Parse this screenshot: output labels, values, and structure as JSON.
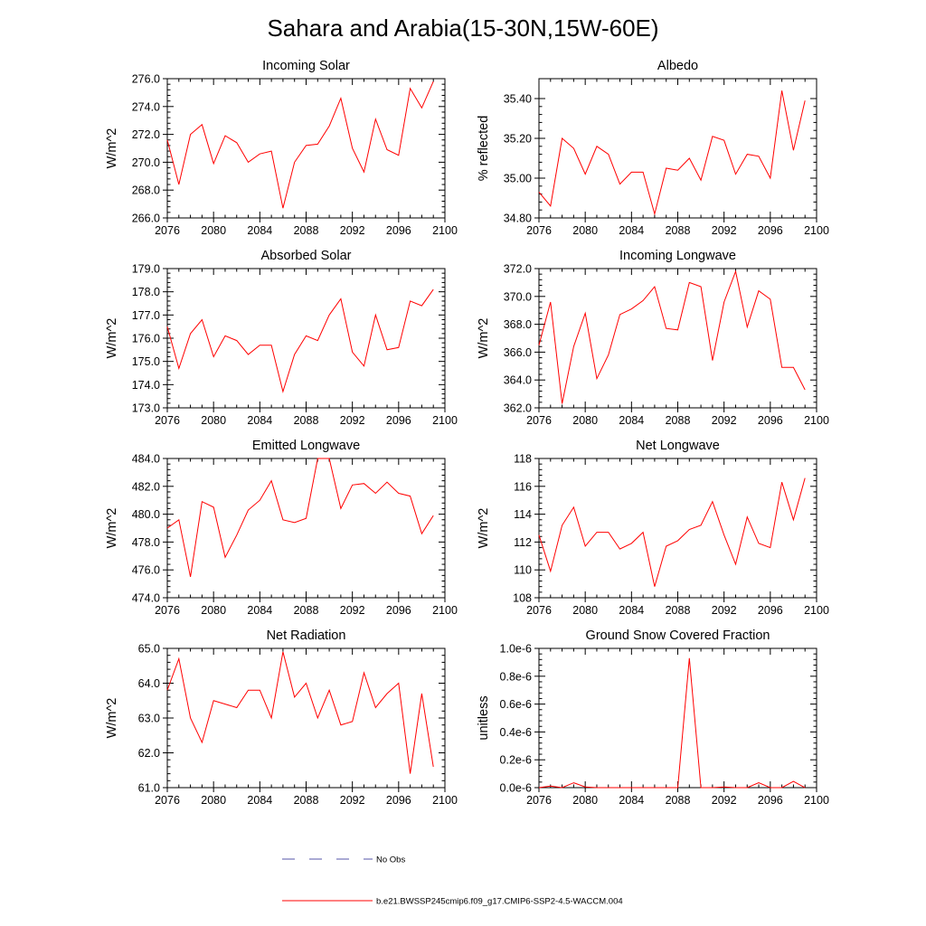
{
  "figure": {
    "title": "Sahara and Arabia(15-30N,15W-60E)",
    "legend": {
      "position": "bottom-center",
      "entries": [
        {
          "label": "No Obs",
          "style": "dashed",
          "color": "#5555aa"
        },
        {
          "label": "b.e21.BWSSP245cmip6.f09_g17.CMIP6-SSP2-4.5-WACCM.004",
          "style": "solid",
          "color": "#ff0000"
        }
      ]
    }
  },
  "chart_data": [
    {
      "type": "line",
      "title": "Incoming Solar",
      "ylabel": "W/m^2",
      "xlim": [
        2076,
        2100
      ],
      "ylim": [
        266,
        276
      ],
      "xticks": [
        2076,
        2080,
        2084,
        2088,
        2092,
        2096,
        2100
      ],
      "yticks": [
        266,
        268,
        270,
        272,
        274,
        276
      ],
      "ytick_labels": [
        "266.0",
        "268.0",
        "270.0",
        "272.0",
        "274.0",
        "276.0"
      ],
      "series": [
        {
          "color": "#ff0000",
          "x": [
            2076,
            2077,
            2078,
            2079,
            2080,
            2081,
            2082,
            2083,
            2084,
            2085,
            2086,
            2087,
            2088,
            2089,
            2090,
            2091,
            2092,
            2093,
            2094,
            2095,
            2096,
            2097,
            2098,
            2099
          ],
          "values": [
            271.6,
            268.4,
            272.0,
            272.7,
            269.9,
            271.9,
            271.4,
            270.0,
            270.6,
            270.8,
            266.7,
            270.0,
            271.2,
            271.3,
            272.6,
            274.6,
            271.0,
            269.3,
            273.1,
            270.9,
            270.5,
            275.3,
            273.9,
            275.8
          ]
        }
      ]
    },
    {
      "type": "line",
      "title": "Albedo",
      "ylabel": "% reflected",
      "xlim": [
        2076,
        2100
      ],
      "ylim": [
        34.8,
        35.5
      ],
      "xticks": [
        2076,
        2080,
        2084,
        2088,
        2092,
        2096,
        2100
      ],
      "yticks": [
        34.8,
        35.0,
        35.2,
        35.4
      ],
      "ytick_labels": [
        "34.80",
        "35.00",
        "35.20",
        "35.40"
      ],
      "series": [
        {
          "color": "#ff0000",
          "x": [
            2076,
            2077,
            2078,
            2079,
            2080,
            2081,
            2082,
            2083,
            2084,
            2085,
            2086,
            2087,
            2088,
            2089,
            2090,
            2091,
            2092,
            2093,
            2094,
            2095,
            2096,
            2097,
            2098,
            2099
          ],
          "values": [
            34.93,
            34.86,
            35.2,
            35.15,
            35.02,
            35.16,
            35.12,
            34.97,
            35.03,
            35.03,
            34.82,
            35.05,
            35.04,
            35.1,
            34.99,
            35.21,
            35.19,
            35.02,
            35.12,
            35.11,
            35.0,
            35.44,
            35.14,
            35.39
          ]
        }
      ]
    },
    {
      "type": "line",
      "title": "Absorbed Solar",
      "ylabel": "W/m^2",
      "xlim": [
        2076,
        2100
      ],
      "ylim": [
        173,
        179
      ],
      "xticks": [
        2076,
        2080,
        2084,
        2088,
        2092,
        2096,
        2100
      ],
      "yticks": [
        173,
        174,
        175,
        176,
        177,
        178,
        179
      ],
      "ytick_labels": [
        "173.0",
        "174.0",
        "175.0",
        "176.0",
        "177.0",
        "178.0",
        "179.0"
      ],
      "series": [
        {
          "color": "#ff0000",
          "x": [
            2076,
            2077,
            2078,
            2079,
            2080,
            2081,
            2082,
            2083,
            2084,
            2085,
            2086,
            2087,
            2088,
            2089,
            2090,
            2091,
            2092,
            2093,
            2094,
            2095,
            2096,
            2097,
            2098,
            2099
          ],
          "values": [
            176.5,
            174.7,
            176.2,
            176.8,
            175.2,
            176.1,
            175.9,
            175.3,
            175.7,
            175.7,
            173.7,
            175.3,
            176.1,
            175.9,
            177.0,
            177.7,
            175.4,
            174.8,
            177.0,
            175.5,
            175.6,
            177.6,
            177.4,
            178.1
          ]
        }
      ]
    },
    {
      "type": "line",
      "title": "Incoming Longwave",
      "ylabel": "W/m^2",
      "xlim": [
        2076,
        2100
      ],
      "ylim": [
        362,
        372
      ],
      "xticks": [
        2076,
        2080,
        2084,
        2088,
        2092,
        2096,
        2100
      ],
      "yticks": [
        362,
        364,
        366,
        368,
        370,
        372
      ],
      "ytick_labels": [
        "362.0",
        "364.0",
        "366.0",
        "368.0",
        "370.0",
        "372.0"
      ],
      "series": [
        {
          "color": "#ff0000",
          "x": [
            2076,
            2077,
            2078,
            2079,
            2080,
            2081,
            2082,
            2083,
            2084,
            2085,
            2086,
            2087,
            2088,
            2089,
            2090,
            2091,
            2092,
            2093,
            2094,
            2095,
            2096,
            2097,
            2098,
            2099
          ],
          "values": [
            366.5,
            369.6,
            362.3,
            366.4,
            368.8,
            364.1,
            365.8,
            368.7,
            369.1,
            369.7,
            370.7,
            367.7,
            367.6,
            371.0,
            370.7,
            365.4,
            369.6,
            371.8,
            367.8,
            370.4,
            369.8,
            364.9,
            364.9,
            363.3
          ]
        }
      ]
    },
    {
      "type": "line",
      "title": "Emitted Longwave",
      "ylabel": "W/m^2",
      "xlim": [
        2076,
        2100
      ],
      "ylim": [
        474,
        484
      ],
      "xticks": [
        2076,
        2080,
        2084,
        2088,
        2092,
        2096,
        2100
      ],
      "yticks": [
        474,
        476,
        478,
        480,
        482,
        484
      ],
      "ytick_labels": [
        "474.0",
        "476.0",
        "478.0",
        "480.0",
        "482.0",
        "484.0"
      ],
      "series": [
        {
          "color": "#ff0000",
          "x": [
            2076,
            2077,
            2078,
            2079,
            2080,
            2081,
            2082,
            2083,
            2084,
            2085,
            2086,
            2087,
            2088,
            2089,
            2090,
            2091,
            2092,
            2093,
            2094,
            2095,
            2096,
            2097,
            2098,
            2099
          ],
          "values": [
            479.0,
            479.6,
            475.5,
            480.9,
            480.5,
            476.9,
            478.5,
            480.3,
            481.0,
            482.4,
            479.6,
            479.4,
            479.7,
            484.0,
            484.0,
            480.4,
            482.1,
            482.2,
            481.5,
            482.3,
            481.5,
            481.3,
            478.6,
            479.9
          ]
        }
      ]
    },
    {
      "type": "line",
      "title": "Net Longwave",
      "ylabel": "W/m^2",
      "xlim": [
        2076,
        2100
      ],
      "ylim": [
        108,
        118
      ],
      "xticks": [
        2076,
        2080,
        2084,
        2088,
        2092,
        2096,
        2100
      ],
      "yticks": [
        108,
        110,
        112,
        114,
        116,
        118
      ],
      "ytick_labels": [
        "108",
        "110",
        "112",
        "114",
        "116",
        "118"
      ],
      "series": [
        {
          "color": "#ff0000",
          "x": [
            2076,
            2077,
            2078,
            2079,
            2080,
            2081,
            2082,
            2083,
            2084,
            2085,
            2086,
            2087,
            2088,
            2089,
            2090,
            2091,
            2092,
            2093,
            2094,
            2095,
            2096,
            2097,
            2098,
            2099
          ],
          "values": [
            112.5,
            109.9,
            113.2,
            114.5,
            111.7,
            112.7,
            112.7,
            111.5,
            111.9,
            112.7,
            108.8,
            111.7,
            112.1,
            112.9,
            113.2,
            114.9,
            112.5,
            110.4,
            113.8,
            111.9,
            111.6,
            116.3,
            113.6,
            116.6
          ]
        }
      ]
    },
    {
      "type": "line",
      "title": "Net Radiation",
      "ylabel": "W/m^2",
      "xlim": [
        2076,
        2100
      ],
      "ylim": [
        61,
        65
      ],
      "xticks": [
        2076,
        2080,
        2084,
        2088,
        2092,
        2096,
        2100
      ],
      "yticks": [
        61,
        62,
        63,
        64,
        65
      ],
      "ytick_labels": [
        "61.0",
        "62.0",
        "63.0",
        "64.0",
        "65.0"
      ],
      "series": [
        {
          "color": "#ff0000",
          "x": [
            2076,
            2077,
            2078,
            2079,
            2080,
            2081,
            2082,
            2083,
            2084,
            2085,
            2086,
            2087,
            2088,
            2089,
            2090,
            2091,
            2092,
            2093,
            2094,
            2095,
            2096,
            2097,
            2098,
            2099
          ],
          "values": [
            63.8,
            64.7,
            63.0,
            62.3,
            63.5,
            63.4,
            63.3,
            63.8,
            63.8,
            63.0,
            64.9,
            63.6,
            64.0,
            63.0,
            63.8,
            62.8,
            62.9,
            64.3,
            63.3,
            63.7,
            64.0,
            61.4,
            63.7,
            61.6
          ]
        }
      ]
    },
    {
      "type": "line",
      "title": "Ground Snow Covered Fraction",
      "ylabel": "unitless",
      "xlim": [
        2076,
        2100
      ],
      "ylim": [
        0,
        1e-06
      ],
      "xticks": [
        2076,
        2080,
        2084,
        2088,
        2092,
        2096,
        2100
      ],
      "yticks": [
        0,
        2e-07,
        4e-07,
        6e-07,
        8e-07,
        1e-06
      ],
      "ytick_labels": [
        "0.0e-6",
        "0.2e-6",
        "0.4e-6",
        "0.6e-6",
        "0.8e-6",
        "1.0e-6"
      ],
      "series": [
        {
          "color": "#ff0000",
          "x": [
            2076,
            2077,
            2078,
            2079,
            2080,
            2081,
            2082,
            2083,
            2084,
            2085,
            2086,
            2087,
            2088,
            2089,
            2090,
            2091,
            2092,
            2093,
            2094,
            2095,
            2096,
            2097,
            2098,
            2099
          ],
          "values": [
            0.0,
            1.2e-08,
            0.0,
            3.5e-08,
            5e-09,
            0.0,
            0.0,
            0.0,
            0.0,
            0.0,
            0.0,
            0.0,
            0.0,
            9.3e-07,
            0.0,
            0.0,
            5e-09,
            0.0,
            0.0,
            3.5e-08,
            0.0,
            0.0,
            4.5e-08,
            0.0
          ]
        }
      ]
    }
  ]
}
